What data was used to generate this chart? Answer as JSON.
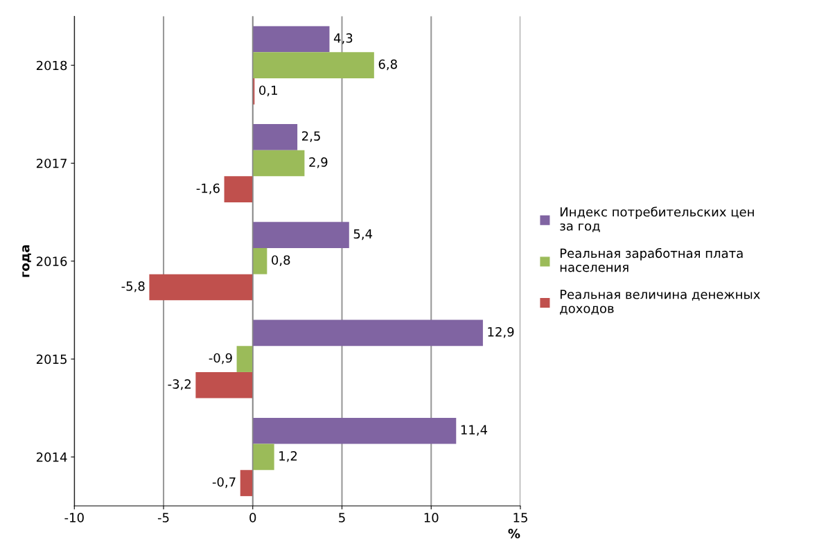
{
  "chart_data": {
    "type": "bar",
    "orientation": "horizontal",
    "ylabel": "года",
    "xlabel": "%",
    "categories": [
      "2018",
      "2017",
      "2016",
      "2015",
      "2014"
    ],
    "series": [
      {
        "name": "Индекс потребительских цен за год",
        "color": "#8064a2",
        "values": [
          4.3,
          2.5,
          5.4,
          12.9,
          11.4
        ],
        "value_labels": [
          "4,3",
          "2,5",
          "5,4",
          "12,9",
          "11,4"
        ]
      },
      {
        "name": "Реальная заработная плата населения",
        "color": "#9bbb59",
        "values": [
          6.8,
          2.9,
          0.8,
          -0.9,
          1.2
        ],
        "value_labels": [
          "6,8",
          "2,9",
          "0,8",
          "-0,9",
          "1,2"
        ]
      },
      {
        "name": "Реальная величина денежных доходов",
        "color": "#c0504d",
        "values": [
          0.1,
          -1.6,
          -5.8,
          -3.2,
          -0.7
        ],
        "value_labels": [
          "0,1",
          "-1,6",
          "-5,8",
          "-3,2",
          "-0,7"
        ]
      }
    ],
    "xlim": [
      -10,
      15
    ],
    "xticks": [
      -10,
      -5,
      0,
      5,
      10,
      15
    ],
    "grid": "x",
    "legend": "right"
  }
}
